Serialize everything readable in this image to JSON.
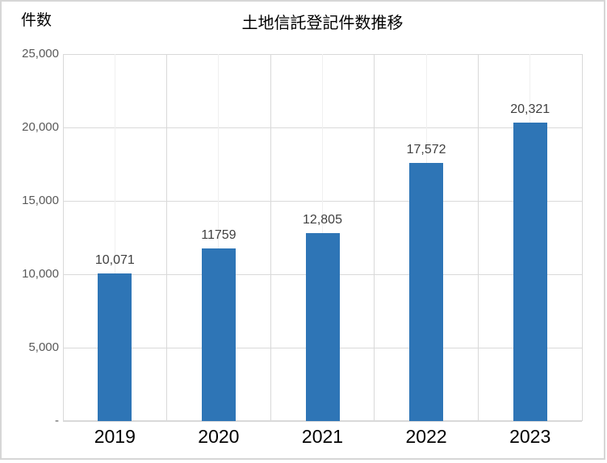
{
  "chart_data": {
    "type": "bar",
    "title": "土地信託登記件数推移",
    "y_axis_title": "件数",
    "xlabel": "",
    "ylabel": "件数",
    "categories": [
      "2019",
      "2020",
      "2021",
      "2022",
      "2023"
    ],
    "values": [
      10071,
      11759,
      12805,
      17572,
      20321
    ],
    "value_labels": [
      "10,071",
      "11759",
      "12,805",
      "17,572",
      "20,321"
    ],
    "ylim": [
      0,
      25000
    ],
    "y_ticks": [
      {
        "value": 0,
        "label": "-"
      },
      {
        "value": 5000,
        "label": "5,000"
      },
      {
        "value": 10000,
        "label": "10,000"
      },
      {
        "value": 15000,
        "label": "15,000"
      },
      {
        "value": 20000,
        "label": "20,000"
      },
      {
        "value": 25000,
        "label": "25,000"
      }
    ],
    "grid": true,
    "legend_position": "none",
    "colors": {
      "bar": "#2e75b6",
      "major_gridline": "#d9d9d9",
      "minor_gridline": "#f0f0f0",
      "axis_line": "#d9d9d9",
      "y_tick_text": "#595959",
      "data_label_text": "#404040",
      "category_label_text": "#000000",
      "title_text": "#000000",
      "frame_border": "#d6d6d6",
      "background": "#ffffff"
    }
  }
}
